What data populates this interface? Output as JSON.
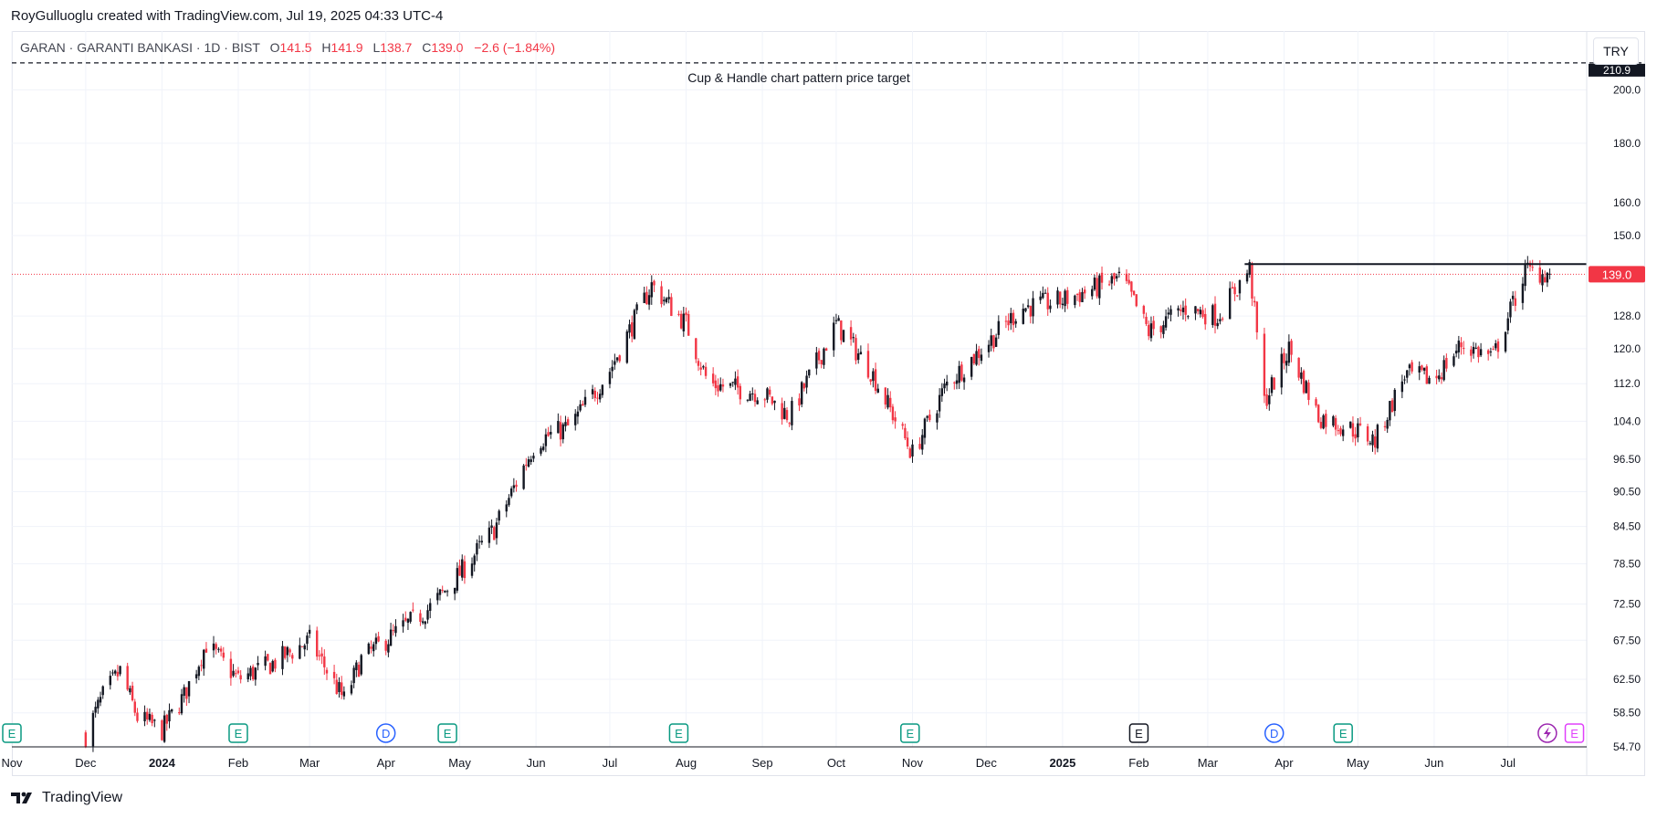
{
  "header": {
    "credit": "RoyGulluoglu created with TradingView.com, Jul 19, 2025 04:33 UTC-4"
  },
  "legend": {
    "symbol": "GARAN · GARANTI BANKASI · 1D · BIST",
    "open_label": "O",
    "open_value": "141.5",
    "high_label": "H",
    "high_value": "141.9",
    "low_label": "L",
    "low_value": "138.7",
    "close_label": "C",
    "close_value": "139.0",
    "change": "−2.6 (−1.84%)"
  },
  "currency_button": "TRY",
  "footer": {
    "brand": "TradingView"
  },
  "colors": {
    "up": "#131722",
    "down": "#f23645",
    "price_line": "#f23645",
    "grid": "#f0f3fa",
    "earnings": "#089981",
    "dividend": "#2962ff",
    "split": "#9c27b0"
  },
  "chart_data": {
    "type": "candlestick",
    "scale": "log",
    "ylim": [
      54.7,
      212
    ],
    "x_range": [
      "2023-11-01",
      "2025-08-02"
    ],
    "grid": true,
    "price_axis_ticks": [
      "200.0",
      "180.0",
      "160.0",
      "150.0",
      "128.0",
      "120.0",
      "112.0",
      "104.0",
      "96.50",
      "90.50",
      "84.50",
      "78.50",
      "72.50",
      "67.50",
      "62.50",
      "58.50",
      "54.70"
    ],
    "time_axis_ticks": [
      {
        "label": "Nov",
        "date": "2023-11-01",
        "bold": false
      },
      {
        "label": "Dec",
        "date": "2023-12-01",
        "bold": false
      },
      {
        "label": "2024",
        "date": "2024-01-01",
        "bold": true
      },
      {
        "label": "Feb",
        "date": "2024-02-01",
        "bold": false
      },
      {
        "label": "Mar",
        "date": "2024-03-01",
        "bold": false
      },
      {
        "label": "Apr",
        "date": "2024-04-01",
        "bold": false
      },
      {
        "label": "May",
        "date": "2024-05-01",
        "bold": false
      },
      {
        "label": "Jun",
        "date": "2024-06-01",
        "bold": false
      },
      {
        "label": "Jul",
        "date": "2024-07-01",
        "bold": false
      },
      {
        "label": "Aug",
        "date": "2024-08-01",
        "bold": false
      },
      {
        "label": "Sep",
        "date": "2024-09-01",
        "bold": false
      },
      {
        "label": "Oct",
        "date": "2024-10-01",
        "bold": false
      },
      {
        "label": "Nov",
        "date": "2024-11-01",
        "bold": false
      },
      {
        "label": "Dec",
        "date": "2024-12-01",
        "bold": false
      },
      {
        "label": "2025",
        "date": "2025-01-01",
        "bold": true
      },
      {
        "label": "Feb",
        "date": "2025-02-01",
        "bold": false
      },
      {
        "label": "Mar",
        "date": "2025-03-01",
        "bold": false
      },
      {
        "label": "Apr",
        "date": "2025-04-01",
        "bold": false
      },
      {
        "label": "May",
        "date": "2025-05-01",
        "bold": false
      },
      {
        "label": "Jun",
        "date": "2025-06-01",
        "bold": false
      },
      {
        "label": "Jul",
        "date": "2025-07-01",
        "bold": false
      }
    ],
    "close_path": [
      [
        "2023-12-01",
        56.0
      ],
      [
        "2023-12-08",
        60.5
      ],
      [
        "2023-12-15",
        63.5
      ],
      [
        "2023-12-22",
        58.0
      ],
      [
        "2024-01-01",
        56.5
      ],
      [
        "2024-01-10",
        60.5
      ],
      [
        "2024-01-19",
        67.0
      ],
      [
        "2024-02-01",
        62.5
      ],
      [
        "2024-02-15",
        64.5
      ],
      [
        "2024-03-01",
        67.5
      ],
      [
        "2024-03-15",
        60.0
      ],
      [
        "2024-03-22",
        65.0
      ],
      [
        "2024-04-01",
        67.5
      ],
      [
        "2024-04-19",
        72.0
      ],
      [
        "2024-05-01",
        77.0
      ],
      [
        "2024-05-15",
        84.0
      ],
      [
        "2024-06-01",
        100.0
      ],
      [
        "2024-06-15",
        103.0
      ],
      [
        "2024-07-01",
        115.0
      ],
      [
        "2024-07-18",
        136.0
      ],
      [
        "2024-08-01",
        126.0
      ],
      [
        "2024-08-10",
        112.0
      ],
      [
        "2024-09-01",
        110.0
      ],
      [
        "2024-09-12",
        105.0
      ],
      [
        "2024-10-01",
        126.0
      ],
      [
        "2024-10-15",
        115.0
      ],
      [
        "2024-11-01",
        97.5
      ],
      [
        "2024-11-15",
        112.0
      ],
      [
        "2024-12-01",
        121.0
      ],
      [
        "2024-12-15",
        130.0
      ],
      [
        "2025-01-01",
        132.0
      ],
      [
        "2025-01-25",
        138.0
      ],
      [
        "2025-02-05",
        124.0
      ],
      [
        "2025-02-20",
        130.0
      ],
      [
        "2025-03-05",
        128.0
      ],
      [
        "2025-03-18",
        140.5
      ],
      [
        "2025-03-24",
        108.0
      ],
      [
        "2025-04-03",
        120.0
      ],
      [
        "2025-04-15",
        105.0
      ],
      [
        "2025-05-01",
        102.0
      ],
      [
        "2025-05-08",
        100.0
      ],
      [
        "2025-05-20",
        114.0
      ],
      [
        "2025-06-01",
        113.0
      ],
      [
        "2025-06-12",
        121.0
      ],
      [
        "2025-06-25",
        118.0
      ],
      [
        "2025-07-08",
        140.0
      ],
      [
        "2025-07-18",
        139.0
      ]
    ],
    "last_price": 139.0,
    "last_price_label": "139.0",
    "target_price": 210.9,
    "target_price_label": "210.9",
    "target_label": "Cup & Handle chart pattern price target",
    "resistance": {
      "price": 141.8,
      "from": "2025-03-16",
      "to": "2025-08-02"
    },
    "events": [
      {
        "type": "E",
        "date": "2023-11-01"
      },
      {
        "type": "E",
        "date": "2024-02-01"
      },
      {
        "type": "D",
        "date": "2024-04-01"
      },
      {
        "type": "E",
        "date": "2024-04-26"
      },
      {
        "type": "E",
        "date": "2024-07-29"
      },
      {
        "type": "E",
        "date": "2024-10-31"
      },
      {
        "type": "E",
        "date": "2025-02-01",
        "style": "neutral"
      },
      {
        "type": "D",
        "date": "2025-03-28"
      },
      {
        "type": "E",
        "date": "2025-04-25"
      },
      {
        "type": "split",
        "date": "2025-07-17"
      },
      {
        "type": "E",
        "date": "2025-07-28",
        "style": "split"
      }
    ]
  }
}
